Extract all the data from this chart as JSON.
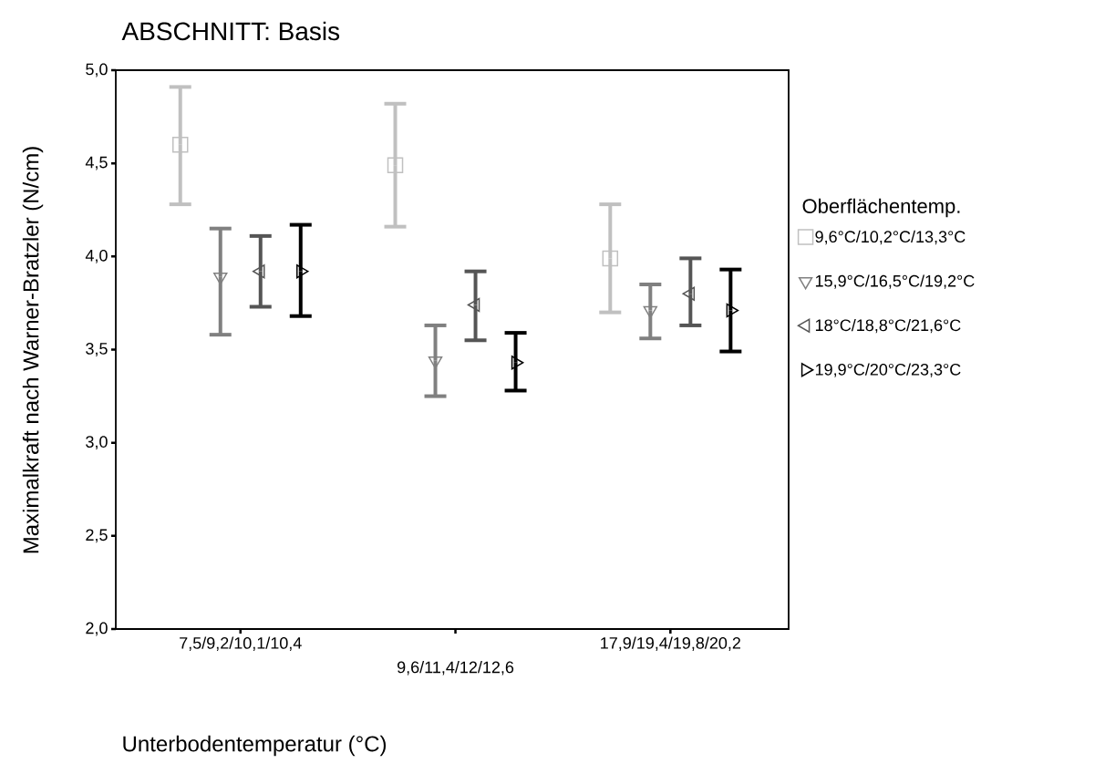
{
  "chart_data": {
    "type": "scatter",
    "title": "ABSCHNITT: Basis",
    "xlabel": "Unterbodentemperatur (°C)",
    "ylabel": "Maximalkraft nach Warner-Bratzler (N/cm)",
    "legend_title": "Oberflächentemp.",
    "categories": [
      "7,5/9,2/10,1/10,4",
      "9,6/11,4/12/12,6",
      "17,9/19,4/19,8/20,2"
    ],
    "ylim": [
      2,
      5
    ],
    "yticks": [
      {
        "value": 2,
        "label": "2,0"
      },
      {
        "value": 2.5,
        "label": "2,5"
      },
      {
        "value": 3,
        "label": "3,0"
      },
      {
        "value": 3.5,
        "label": "3,5"
      },
      {
        "value": 4,
        "label": "4,0"
      },
      {
        "value": 4.5,
        "label": "4,5"
      },
      {
        "value": 5,
        "label": "5,0"
      }
    ],
    "grid": false,
    "legend": "right",
    "series": [
      {
        "name": "9,6°C/10,2°C/13,3°C",
        "color": "#c0c0c0",
        "marker": "square",
        "values": [
          4.6,
          4.49,
          3.99
        ],
        "errors": [
          [
            4.28,
            4.91
          ],
          [
            4.16,
            4.82
          ],
          [
            3.7,
            4.28
          ]
        ]
      },
      {
        "name": "15,9°C/16,5°C/19,2°C",
        "color": "#808080",
        "marker": "triangle",
        "values": [
          3.89,
          3.44,
          3.71
        ],
        "errors": [
          [
            3.58,
            4.15
          ],
          [
            3.25,
            3.63
          ],
          [
            3.56,
            3.85
          ]
        ]
      },
      {
        "name": "18°C/18,8°C/21,6°C",
        "color": "#555555",
        "marker": "triangle",
        "values": [
          3.92,
          3.74,
          3.8
        ],
        "errors": [
          [
            3.73,
            4.11
          ],
          [
            3.55,
            3.92
          ],
          [
            3.63,
            3.99
          ]
        ]
      },
      {
        "name": "19,9°C/20°C/23,3°C",
        "color": "#000000",
        "marker": "triangle",
        "values": [
          3.92,
          3.43,
          3.71
        ],
        "errors": [
          [
            3.68,
            4.17
          ],
          [
            3.28,
            3.59
          ],
          [
            3.49,
            3.93
          ]
        ]
      }
    ]
  }
}
